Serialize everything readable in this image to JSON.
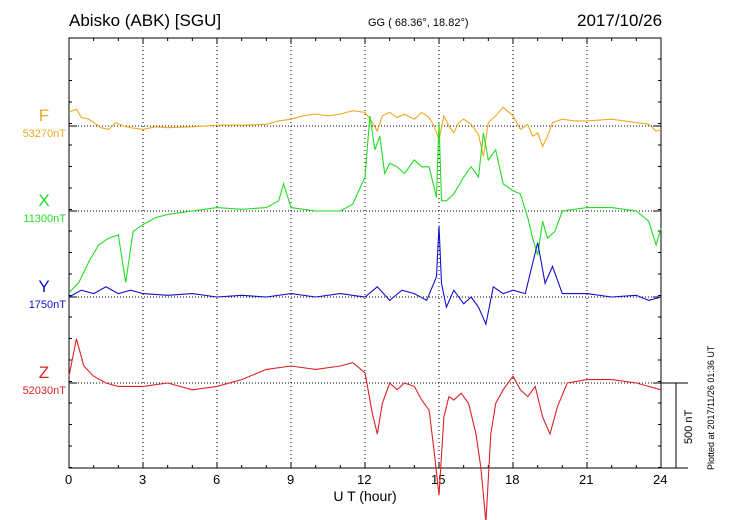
{
  "header": {
    "station": "Abisko (ABK)  [SGU]",
    "coords": "GG ( 68.36°,  18.82°)",
    "date": "2017/10/26"
  },
  "footer": {
    "plotted": "Plotted at 2017/11/26 01:36 UT",
    "scale_label": "500 nT"
  },
  "chart_data": {
    "type": "line",
    "xlabel": "U T (hour)",
    "xlim": [
      0,
      24
    ],
    "xticks": [
      "0",
      "3",
      "6",
      "9",
      "12",
      "15",
      "18",
      "21",
      "24"
    ],
    "scale_bar_nT": 500,
    "grid": true,
    "series": [
      {
        "name": "F",
        "baseline_label": "53270nT",
        "baseline_nT": 53270,
        "color": "#f0aa22",
        "x": [
          0,
          0.3,
          0.5,
          0.8,
          1.0,
          1.3,
          1.6,
          1.9,
          2.2,
          2.5,
          3.0,
          3.5,
          4.0,
          5.0,
          6.0,
          7.0,
          8.0,
          8.5,
          9.0,
          9.5,
          10.0,
          10.5,
          11.0,
          11.5,
          12.0,
          12.3,
          12.5,
          12.7,
          13.0,
          13.3,
          13.6,
          14.0,
          14.3,
          14.6,
          14.8,
          15.0,
          15.2,
          15.4,
          15.6,
          15.8,
          16.0,
          16.3,
          16.6,
          16.8,
          17.0,
          17.3,
          17.6,
          18.0,
          18.3,
          18.6,
          18.8,
          19.0,
          19.2,
          19.4,
          19.6,
          20.0,
          20.5,
          21.0,
          22.0,
          23.0,
          23.5,
          23.8,
          24.0
        ],
        "y": [
          80,
          100,
          50,
          40,
          20,
          -10,
          -20,
          20,
          0,
          -10,
          -20,
          -5,
          -10,
          -5,
          5,
          5,
          10,
          30,
          40,
          60,
          70,
          60,
          70,
          90,
          80,
          20,
          -30,
          60,
          80,
          50,
          70,
          40,
          80,
          50,
          0,
          -80,
          60,
          0,
          -40,
          20,
          40,
          10,
          -50,
          -180,
          20,
          60,
          110,
          60,
          -20,
          10,
          -60,
          -40,
          -120,
          -60,
          20,
          40,
          30,
          30,
          40,
          20,
          10,
          -30,
          -20
        ]
      },
      {
        "name": "X",
        "baseline_label": "11300nT",
        "baseline_nT": 11300,
        "color": "#22dd22",
        "x": [
          0,
          0.4,
          0.8,
          1.2,
          1.6,
          2.0,
          2.3,
          2.6,
          3.0,
          3.5,
          4.0,
          4.5,
          5.0,
          6.0,
          7.0,
          8.0,
          8.5,
          8.7,
          9.0,
          10.0,
          11.0,
          11.5,
          12.0,
          12.2,
          12.4,
          12.6,
          12.8,
          13.0,
          13.3,
          13.6,
          14.0,
          14.3,
          14.6,
          14.9,
          15.0,
          15.1,
          15.3,
          15.6,
          16.0,
          16.3,
          16.6,
          16.8,
          17.0,
          17.3,
          17.6,
          18.0,
          18.3,
          18.6,
          18.8,
          19.0,
          19.2,
          19.4,
          19.7,
          20.0,
          21.0,
          22.0,
          23.0,
          23.5,
          23.8,
          24.0
        ],
        "y": [
          -480,
          -420,
          -300,
          -200,
          -160,
          -140,
          -420,
          -120,
          -80,
          -40,
          -20,
          -10,
          0,
          20,
          10,
          20,
          60,
          160,
          20,
          0,
          0,
          40,
          200,
          560,
          360,
          440,
          220,
          280,
          260,
          220,
          300,
          260,
          260,
          80,
          520,
          60,
          60,
          100,
          200,
          260,
          200,
          460,
          300,
          360,
          160,
          120,
          100,
          -40,
          -160,
          -260,
          -60,
          -160,
          -120,
          0,
          20,
          20,
          0,
          -60,
          -200,
          -100
        ]
      },
      {
        "name": "Y",
        "baseline_label": "1750nT",
        "baseline_nT": 1750,
        "color": "#1111cc",
        "x": [
          0,
          0.5,
          1.0,
          1.5,
          2.0,
          2.5,
          3.0,
          4.0,
          5.0,
          6.0,
          7.0,
          8.0,
          9.0,
          10.0,
          11.0,
          12.0,
          12.5,
          13.0,
          13.5,
          14.0,
          14.5,
          14.9,
          15.0,
          15.1,
          15.3,
          15.6,
          16.0,
          16.3,
          16.6,
          16.9,
          17.2,
          17.6,
          18.0,
          18.5,
          18.8,
          19.0,
          19.3,
          19.6,
          20.0,
          21.0,
          22.0,
          23.0,
          23.5,
          24.0
        ],
        "y": [
          0,
          40,
          20,
          60,
          20,
          40,
          20,
          10,
          20,
          0,
          10,
          0,
          20,
          0,
          20,
          0,
          60,
          -20,
          40,
          20,
          -20,
          120,
          420,
          80,
          -60,
          40,
          -40,
          0,
          -60,
          -160,
          60,
          20,
          40,
          20,
          200,
          320,
          80,
          180,
          20,
          20,
          0,
          10,
          -20,
          0
        ]
      },
      {
        "name": "Z",
        "baseline_label": "52030nT",
        "baseline_nT": 52030,
        "color": "#dd2222",
        "x": [
          0,
          0.3,
          0.6,
          1.0,
          1.5,
          2.0,
          3.0,
          4.0,
          5.0,
          6.0,
          7.0,
          8.0,
          9.0,
          10.0,
          11.0,
          11.5,
          12.0,
          12.3,
          12.5,
          12.7,
          13.0,
          13.3,
          13.6,
          14.0,
          14.3,
          14.6,
          14.8,
          15.0,
          15.2,
          15.4,
          15.6,
          15.9,
          16.2,
          16.5,
          16.7,
          16.9,
          17.1,
          17.3,
          17.6,
          18.0,
          18.3,
          18.6,
          18.9,
          19.2,
          19.5,
          19.8,
          20.2,
          21.0,
          22.0,
          23.0,
          23.5,
          24.0
        ],
        "y": [
          40,
          260,
          100,
          40,
          0,
          -20,
          -20,
          0,
          -40,
          -20,
          20,
          80,
          100,
          80,
          100,
          120,
          60,
          -180,
          -300,
          -120,
          0,
          -40,
          0,
          -20,
          -100,
          -160,
          -400,
          -660,
          -200,
          -80,
          -100,
          -60,
          -120,
          -300,
          -500,
          -820,
          -300,
          -120,
          -40,
          40,
          -40,
          -80,
          -20,
          -200,
          -300,
          -140,
          0,
          20,
          20,
          0,
          -20,
          -40
        ]
      }
    ]
  }
}
